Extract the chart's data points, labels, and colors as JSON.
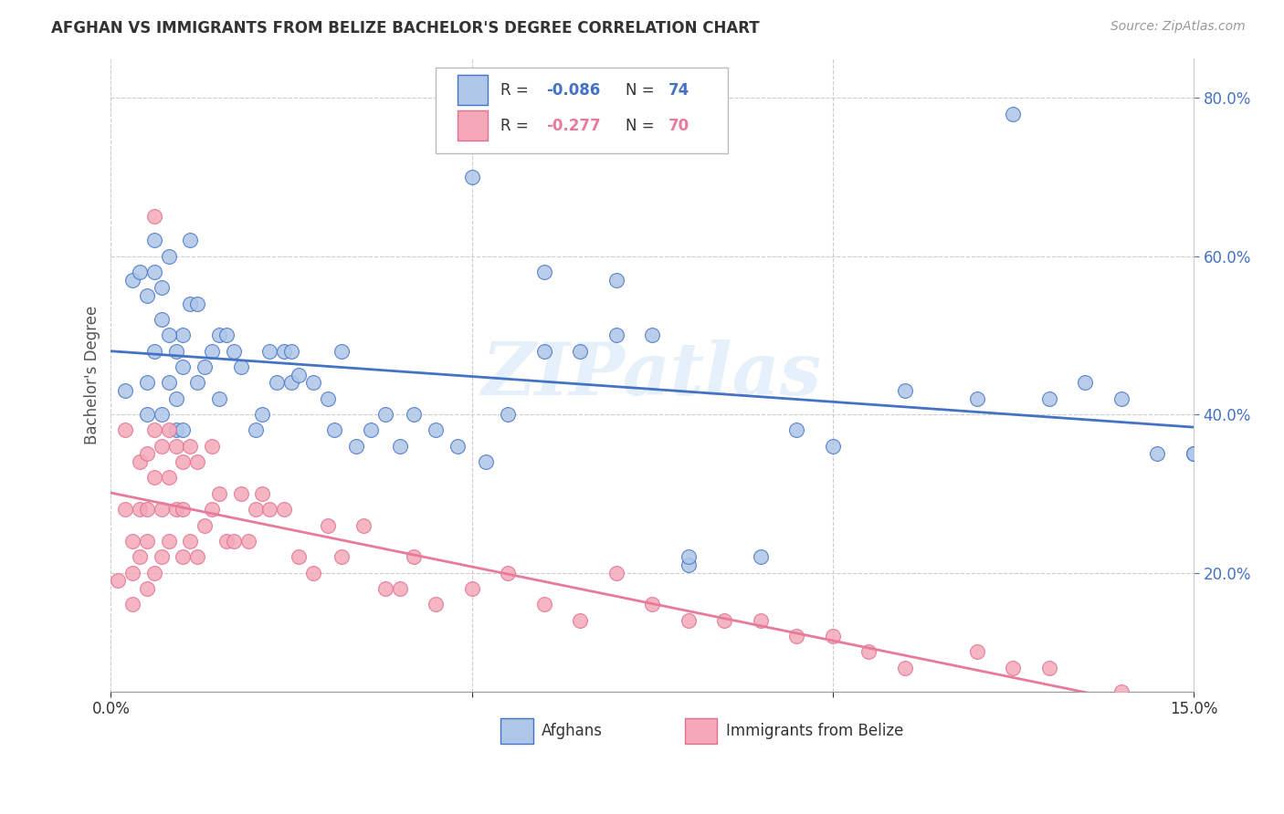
{
  "title": "AFGHAN VS IMMIGRANTS FROM BELIZE BACHELOR'S DEGREE CORRELATION CHART",
  "source": "Source: ZipAtlas.com",
  "ylabel": "Bachelor's Degree",
  "legend_label1": "Afghans",
  "legend_label2": "Immigrants from Belize",
  "legend_R1": "-0.086",
  "legend_N1": "74",
  "legend_R2": "-0.277",
  "legend_N2": "70",
  "color_afghan": "#aec6e8",
  "color_belize": "#f4a8b8",
  "color_line_afghan": "#4472c4",
  "color_line_belize": "#e87a9a",
  "watermark": "ZIPatlas",
  "background_color": "#ffffff",
  "grid_color": "#cccccc",
  "xlim": [
    0.0,
    15.0
  ],
  "ylim": [
    5.0,
    85.0
  ],
  "afghan_x": [
    0.2,
    0.3,
    0.4,
    0.5,
    0.5,
    0.6,
    0.6,
    0.7,
    0.7,
    0.8,
    0.8,
    0.9,
    0.9,
    1.0,
    1.0,
    1.1,
    1.1,
    1.2,
    1.3,
    1.4,
    1.5,
    1.6,
    1.7,
    1.8,
    2.0,
    2.1,
    2.2,
    2.4,
    2.5,
    2.6,
    2.8,
    3.0,
    3.2,
    3.4,
    3.6,
    3.8,
    4.0,
    4.5,
    5.0,
    5.5,
    6.0,
    6.5,
    7.0,
    7.5,
    8.0,
    9.0,
    10.0,
    11.0,
    12.0,
    12.5,
    13.0,
    14.0,
    14.5,
    15.0,
    0.5,
    0.6,
    0.7,
    0.8,
    0.9,
    1.0,
    1.2,
    1.5,
    2.3,
    2.5,
    3.1,
    4.2,
    4.8,
    5.2,
    6.0,
    7.0,
    8.0,
    9.5,
    13.5,
    15.0
  ],
  "afghan_y": [
    43,
    57,
    58,
    55,
    44,
    62,
    48,
    52,
    40,
    60,
    44,
    48,
    38,
    50,
    38,
    62,
    54,
    44,
    46,
    48,
    50,
    50,
    48,
    46,
    38,
    40,
    48,
    48,
    44,
    45,
    44,
    42,
    48,
    36,
    38,
    40,
    36,
    38,
    70,
    40,
    58,
    48,
    57,
    50,
    21,
    22,
    36,
    43,
    42,
    78,
    42,
    42,
    35,
    35,
    40,
    58,
    56,
    50,
    42,
    46,
    54,
    42,
    44,
    48,
    38,
    40,
    36,
    34,
    48,
    50,
    22,
    38,
    44,
    35
  ],
  "belize_x": [
    0.1,
    0.2,
    0.2,
    0.3,
    0.3,
    0.3,
    0.4,
    0.4,
    0.4,
    0.5,
    0.5,
    0.5,
    0.5,
    0.6,
    0.6,
    0.6,
    0.6,
    0.7,
    0.7,
    0.7,
    0.8,
    0.8,
    0.8,
    0.9,
    0.9,
    1.0,
    1.0,
    1.0,
    1.1,
    1.1,
    1.2,
    1.2,
    1.3,
    1.4,
    1.4,
    1.5,
    1.6,
    1.7,
    1.8,
    1.9,
    2.0,
    2.1,
    2.2,
    2.4,
    2.6,
    2.8,
    3.0,
    3.2,
    3.5,
    3.8,
    4.0,
    4.2,
    4.5,
    5.0,
    5.5,
    6.0,
    6.5,
    7.0,
    7.5,
    8.0,
    8.5,
    9.0,
    9.5,
    10.0,
    10.5,
    11.0,
    12.0,
    12.5,
    13.0,
    14.0
  ],
  "belize_y": [
    19,
    38,
    28,
    24,
    20,
    16,
    34,
    28,
    22,
    35,
    28,
    24,
    18,
    65,
    38,
    32,
    20,
    36,
    28,
    22,
    38,
    32,
    24,
    36,
    28,
    34,
    28,
    22,
    36,
    24,
    34,
    22,
    26,
    36,
    28,
    30,
    24,
    24,
    30,
    24,
    28,
    30,
    28,
    28,
    22,
    20,
    26,
    22,
    26,
    18,
    18,
    22,
    16,
    18,
    20,
    16,
    14,
    20,
    16,
    14,
    14,
    14,
    12,
    12,
    10,
    8,
    10,
    8,
    8,
    5
  ]
}
